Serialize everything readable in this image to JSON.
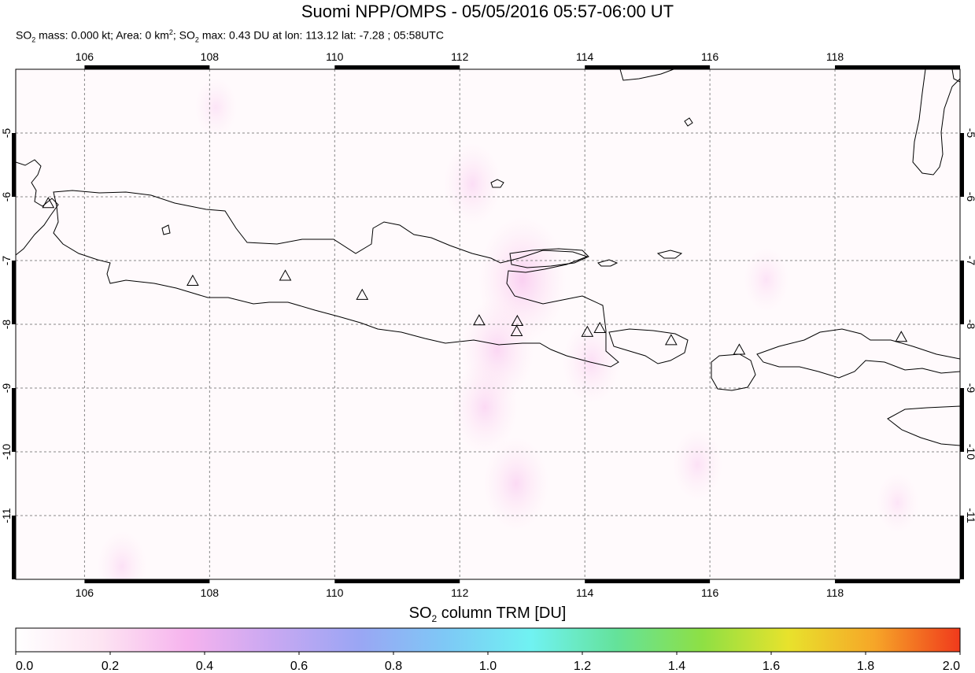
{
  "title": "Suomi NPP/OMPS - 05/05/2016 05:57-06:00 UT",
  "subtitle": {
    "so2_mass_prefix": "SO",
    "so2_mass_text": " mass: 0.000 kt; Area: 0 km",
    "area_sup": "2",
    "so2_max_prefix": "; SO",
    "so2_max_text": " max: 0.43 DU at lon: 113.12 lat: -7.28 ; 05:58UTC",
    "sub_2": "2"
  },
  "map": {
    "lon_range": [
      104.9,
      120.0
    ],
    "lat_range": [
      -12.0,
      -4.0
    ],
    "lon_ticks": [
      "106",
      "108",
      "110",
      "112",
      "114",
      "116",
      "118"
    ],
    "lat_ticks": [
      "-5",
      "-6",
      "-7",
      "-8",
      "-9",
      "-10",
      "-11"
    ],
    "gridlines": true,
    "volcanoes": [
      {
        "lon": 105.42,
        "lat": -6.1
      },
      {
        "lon": 107.73,
        "lat": -7.32
      },
      {
        "lon": 109.21,
        "lat": -7.24
      },
      {
        "lon": 110.44,
        "lat": -7.54
      },
      {
        "lon": 112.31,
        "lat": -7.94
      },
      {
        "lon": 112.92,
        "lat": -7.95
      },
      {
        "lon": 112.91,
        "lat": -8.11
      },
      {
        "lon": 114.04,
        "lat": -8.12
      },
      {
        "lon": 114.24,
        "lat": -8.06
      },
      {
        "lon": 115.38,
        "lat": -8.25
      },
      {
        "lon": 116.47,
        "lat": -8.4
      },
      {
        "lon": 119.06,
        "lat": -8.2
      }
    ],
    "so2_patches": [
      {
        "lon": 113.0,
        "lat": -7.3,
        "value": 0.4
      },
      {
        "lon": 112.6,
        "lat": -8.4,
        "value": 0.3
      },
      {
        "lon": 112.2,
        "lat": -5.8,
        "value": 0.2
      },
      {
        "lon": 112.4,
        "lat": -9.3,
        "value": 0.25
      },
      {
        "lon": 112.9,
        "lat": -10.5,
        "value": 0.25
      },
      {
        "lon": 114.1,
        "lat": -8.6,
        "value": 0.2
      },
      {
        "lon": 115.8,
        "lat": -10.2,
        "value": 0.15
      },
      {
        "lon": 116.9,
        "lat": -7.3,
        "value": 0.12
      },
      {
        "lon": 119.0,
        "lat": -10.8,
        "value": 0.1
      },
      {
        "lon": 106.6,
        "lat": -11.8,
        "value": 0.15
      },
      {
        "lon": 108.1,
        "lat": -4.6,
        "value": 0.1
      }
    ]
  },
  "colorbar": {
    "title_prefix": "SO",
    "title_sub": "2",
    "title_suffix": " column TRM [DU]",
    "range": [
      0.0,
      2.0
    ],
    "tick_labels": [
      "0.0",
      "0.2",
      "0.4",
      "0.6",
      "0.8",
      "1.0",
      "1.2",
      "1.4",
      "1.6",
      "1.8",
      "2.0"
    ],
    "colors": [
      "#ffffff",
      "#fde4f2",
      "#f6b3ee",
      "#c8a8f2",
      "#9aa6f4",
      "#7ec8f6",
      "#70f2f2",
      "#64e29a",
      "#8ee044",
      "#e8e22c",
      "#f6a628",
      "#f03a1c"
    ]
  }
}
